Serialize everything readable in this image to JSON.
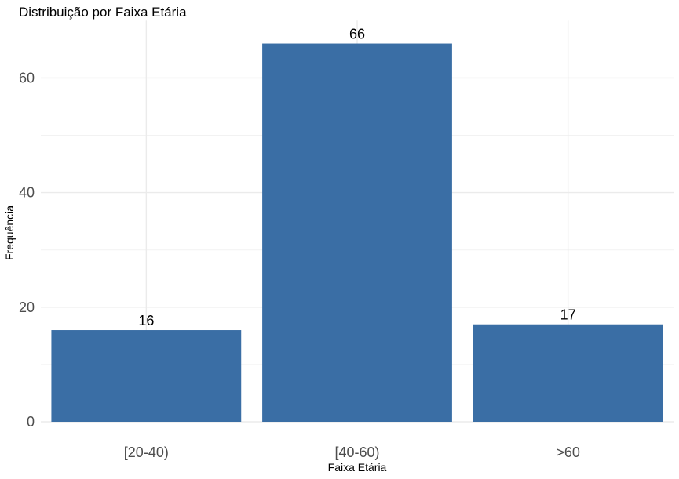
{
  "chart_data": {
    "type": "bar",
    "title": "Distribuição por Faixa Etária",
    "xlabel": "Faixa Etária",
    "ylabel": "Frequência",
    "categories": [
      "[20-40)",
      "[40-60)",
      ">60"
    ],
    "values": [
      16,
      66,
      17
    ],
    "data_labels": [
      "16",
      "66",
      "17"
    ],
    "ylim": [
      0,
      70
    ],
    "y_ticks": [
      0,
      20,
      40,
      60
    ],
    "y_tick_labels": [
      "0",
      "20",
      "40",
      "60"
    ],
    "y_minor_ticks": [
      10,
      30,
      50
    ],
    "grid": true,
    "legend": "none",
    "bar_color": "#3A6EA5"
  }
}
